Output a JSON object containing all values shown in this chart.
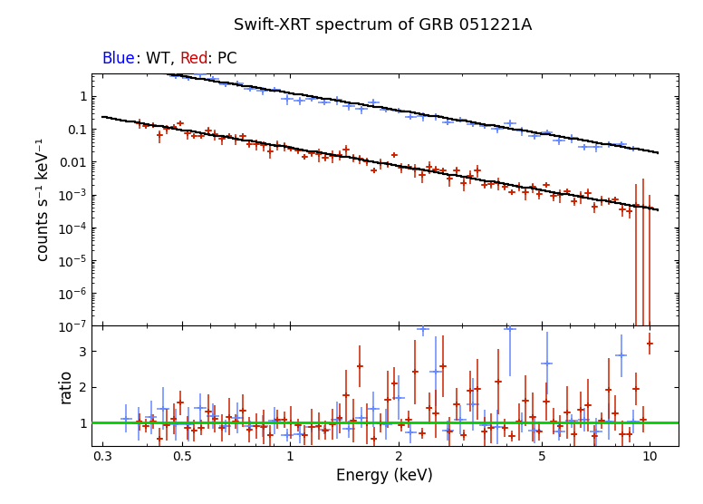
{
  "title": "Swift-XRT spectrum of GRB 051221A",
  "xlabel": "Energy (keV)",
  "ylabel_main": "counts s⁻¹ keV⁻¹",
  "ylabel_ratio": "ratio",
  "wt_color": "#6688ff",
  "pc_color": "#cc2200",
  "model_color": "black",
  "ratio_line_color": "#00cc00",
  "subtitle_blue_color": "#0000ff",
  "subtitle_red_color": "#cc0000",
  "xlim": [
    0.28,
    12.0
  ],
  "ylim_main": [
    1e-07,
    5.0
  ],
  "ylim_ratio": [
    0.35,
    3.7
  ],
  "title_fontsize": 13,
  "subtitle_fontsize": 12,
  "label_fontsize": 12,
  "tick_fontsize": 10
}
